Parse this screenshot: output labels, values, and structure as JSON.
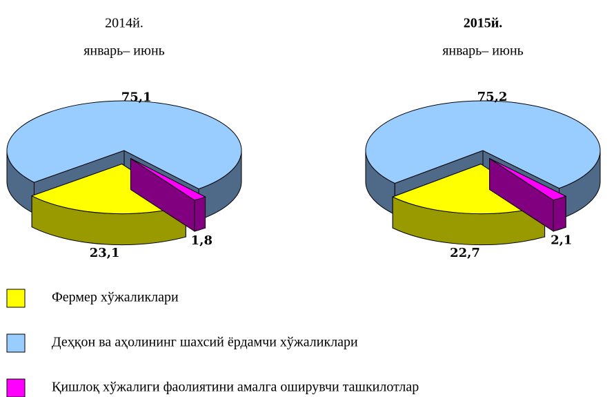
{
  "chart_data": [
    {
      "type": "pie",
      "title": "2014й.",
      "subtitle": "январь– июнь",
      "values": [
        23.1,
        75.1,
        1.8
      ],
      "value_labels": [
        "23,1",
        "75,1",
        "1,8"
      ]
    },
    {
      "type": "pie",
      "title": "2015й.",
      "subtitle": "январь– июнь",
      "values": [
        22.7,
        75.2,
        2.1
      ],
      "value_labels": [
        "22,7",
        "75,2",
        "2,1"
      ]
    }
  ],
  "legend": {
    "labels": [
      "Фермер хўжаликлари",
      "Деҳқон ва аҳолининг шахсий ёрдамчи хўжаликлари",
      "Қишлоқ хўжалиги фаолиятини амалга оширувчи ташкилотлар"
    ],
    "colors": [
      "#ffff00",
      "#99ccff",
      "#ff00ff"
    ],
    "side_colors": [
      "#999900",
      "#4f6a88",
      "#800080"
    ]
  }
}
